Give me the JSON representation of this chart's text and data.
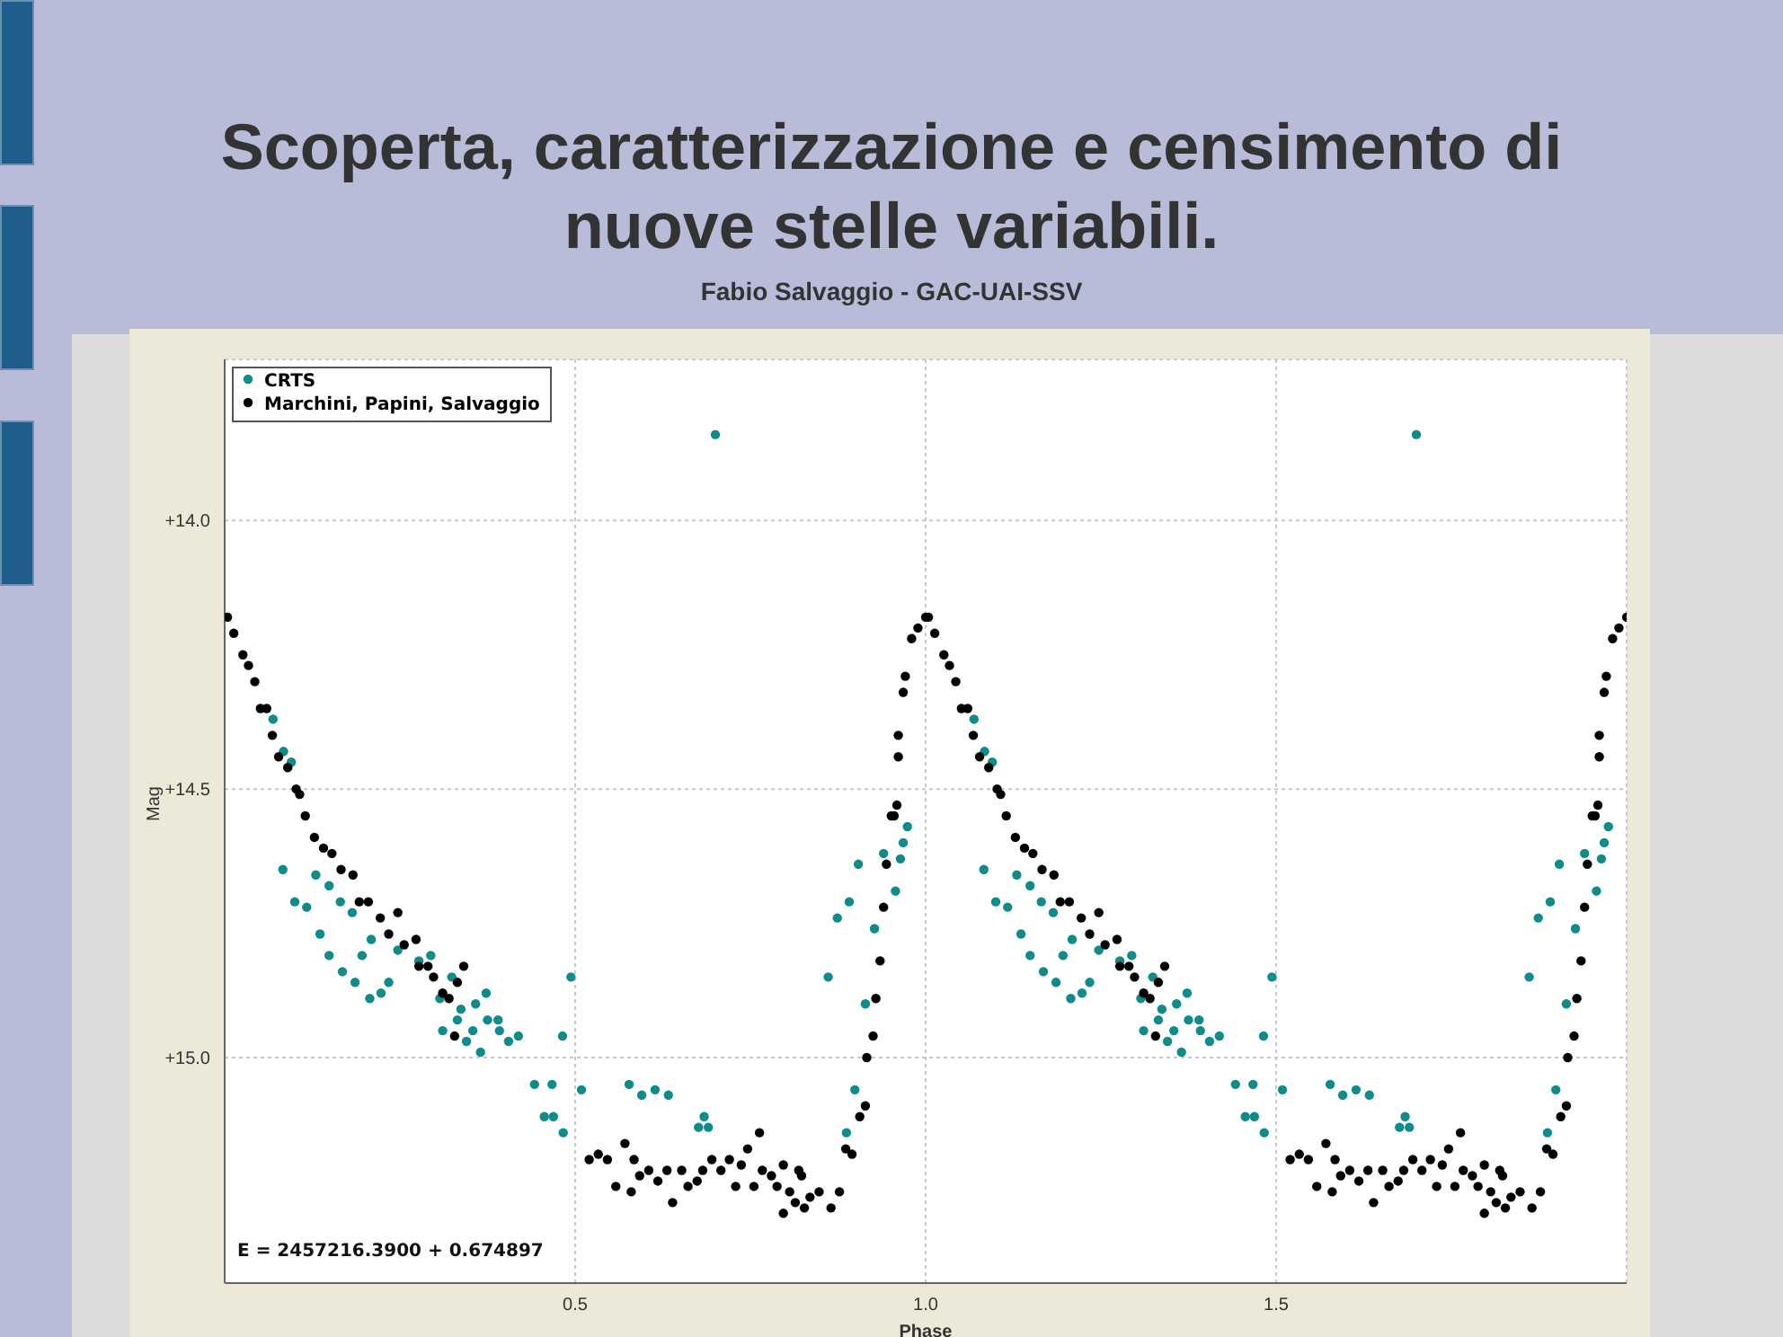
{
  "chart_data": {
    "type": "scatter",
    "title": "Scoperta, caratterizzazione e censimento di nuove stelle variabili.",
    "subtitle": "Fabio Salvaggio - GAC-UAI-SSV",
    "xlabel": "Phase",
    "ylabel": "Mag",
    "xlim": [
      0,
      2
    ],
    "xticks": [
      0.5,
      {
        "value": 1,
        "label": "1.0"
      },
      1.5
    ],
    "ylim": [
      15.42,
      13.7
    ],
    "yticks": [
      {
        "value": 14,
        "label": "+14.0"
      },
      {
        "value": 14.5,
        "label": "+14.5"
      },
      {
        "value": 15,
        "label": "+15.0"
      }
    ],
    "grid": true,
    "legend": "top left",
    "marker": "circle",
    "annotations": [
      "E = 2457216.3900 + 0.674897"
    ],
    "series": [
      {
        "name": "CRTS",
        "color": "#0e8c8c",
        "x": [
          0.069,
          0.084,
          0.095,
          0.083,
          0.1,
          0.117,
          0.13,
          0.136,
          0.149,
          0.149,
          0.165,
          0.168,
          0.182,
          0.186,
          0.196,
          0.207,
          0.209,
          0.223,
          0.234,
          0.247,
          0.277,
          0.294,
          0.307,
          0.311,
          0.324,
          0.332,
          0.337,
          0.345,
          0.354,
          0.358,
          0.365,
          0.373,
          0.375,
          0.39,
          0.392,
          0.405,
          0.419,
          0.442,
          0.456,
          0.467,
          0.469,
          0.482,
          0.483,
          0.494,
          0.509,
          0.577,
          0.595,
          0.614,
          0.633,
          0.676,
          0.684,
          0.69,
          0.7,
          0.861,
          0.874,
          0.887,
          0.891,
          0.899,
          0.904,
          0.914,
          0.927,
          0.94,
          0.957,
          0.964,
          0.968,
          0.974,
          1.069,
          1.084,
          1.095,
          1.083,
          1.1,
          1.117,
          1.13,
          1.136,
          1.149,
          1.149,
          1.165,
          1.168,
          1.182,
          1.186,
          1.196,
          1.207,
          1.209,
          1.223,
          1.234,
          1.247,
          1.277,
          1.294,
          1.307,
          1.311,
          1.324,
          1.332,
          1.337,
          1.345,
          1.354,
          1.358,
          1.365,
          1.373,
          1.375,
          1.39,
          1.392,
          1.405,
          1.419,
          1.442,
          1.456,
          1.467,
          1.469,
          1.482,
          1.483,
          1.494,
          1.509,
          1.577,
          1.595,
          1.614,
          1.633,
          1.676,
          1.684,
          1.69,
          1.7,
          1.861,
          1.874,
          1.887,
          1.891,
          1.899,
          1.904,
          1.914,
          1.927,
          1.94,
          1.957,
          1.964,
          1.968,
          1.974
        ],
        "values": [
          14.37,
          14.43,
          14.45,
          14.65,
          14.71,
          14.72,
          14.66,
          14.77,
          14.68,
          14.81,
          14.71,
          14.84,
          14.73,
          14.86,
          14.81,
          14.89,
          14.78,
          14.88,
          14.86,
          14.8,
          14.82,
          14.81,
          14.89,
          14.95,
          14.85,
          14.93,
          14.91,
          14.97,
          14.95,
          14.9,
          14.99,
          14.88,
          14.93,
          14.93,
          14.95,
          14.97,
          14.96,
          15.05,
          15.11,
          15.05,
          15.11,
          14.96,
          15.14,
          14.85,
          15.06,
          15.05,
          15.07,
          15.06,
          15.07,
          15.13,
          15.11,
          15.13,
          13.84,
          14.85,
          14.74,
          15.14,
          14.71,
          15.06,
          14.64,
          14.9,
          14.76,
          14.62,
          14.69,
          14.63,
          14.6,
          14.57,
          14.37,
          14.43,
          14.45,
          14.65,
          14.71,
          14.72,
          14.66,
          14.77,
          14.68,
          14.81,
          14.71,
          14.84,
          14.73,
          14.86,
          14.81,
          14.89,
          14.78,
          14.88,
          14.86,
          14.8,
          14.82,
          14.81,
          14.89,
          14.95,
          14.85,
          14.93,
          14.91,
          14.97,
          14.95,
          14.9,
          14.99,
          14.88,
          14.93,
          14.93,
          14.95,
          14.97,
          14.96,
          15.05,
          15.11,
          15.05,
          15.11,
          14.96,
          15.14,
          14.85,
          15.06,
          15.05,
          15.07,
          15.06,
          15.07,
          15.13,
          15.11,
          15.13,
          13.84,
          14.85,
          14.74,
          15.14,
          14.71,
          15.06,
          14.64,
          14.9,
          14.76,
          14.62,
          14.69,
          14.63,
          14.6,
          14.57
        ]
      },
      {
        "name": "Marchini, Papini, Salvaggio",
        "color": "#000000",
        "x": [
          0.004,
          0.013,
          0.026,
          0.034,
          0.043,
          0.051,
          0.06,
          0.068,
          0.077,
          0.09,
          0.102,
          0.107,
          0.115,
          0.128,
          0.141,
          0.153,
          0.166,
          0.183,
          0.192,
          0.205,
          0.222,
          0.234,
          0.247,
          0.256,
          0.273,
          0.277,
          0.29,
          0.298,
          0.311,
          0.32,
          0.332,
          0.341,
          0.328,
          0.52,
          0.533,
          0.546,
          0.558,
          0.571,
          0.58,
          0.584,
          0.592,
          0.605,
          0.618,
          0.631,
          0.639,
          0.652,
          0.661,
          0.674,
          0.682,
          0.695,
          0.708,
          0.72,
          0.729,
          0.737,
          0.746,
          0.755,
          0.763,
          0.767,
          0.78,
          0.788,
          0.797,
          0.797,
          0.806,
          0.814,
          0.819,
          0.827,
          0.835,
          0.848,
          0.823,
          0.865,
          0.877,
          0.886,
          0.895,
          0.906,
          0.914,
          0.916,
          0.925,
          0.929,
          0.935,
          0.94,
          0.944,
          0.951,
          0.955,
          0.959,
          0.961,
          0.961,
          0.968,
          0.971,
          0.98,
          0.989,
          1.0,
          1.004,
          1.013,
          1.026,
          1.034,
          1.043,
          1.051,
          1.06,
          1.068,
          1.077,
          1.09,
          1.102,
          1.107,
          1.115,
          1.128,
          1.141,
          1.153,
          1.166,
          1.183,
          1.192,
          1.205,
          1.222,
          1.234,
          1.247,
          1.256,
          1.273,
          1.277,
          1.29,
          1.298,
          1.311,
          1.32,
          1.332,
          1.341,
          1.328,
          1.52,
          1.533,
          1.546,
          1.558,
          1.571,
          1.58,
          1.584,
          1.592,
          1.605,
          1.618,
          1.631,
          1.639,
          1.652,
          1.661,
          1.674,
          1.682,
          1.695,
          1.708,
          1.72,
          1.729,
          1.737,
          1.746,
          1.755,
          1.763,
          1.767,
          1.78,
          1.788,
          1.797,
          1.797,
          1.806,
          1.814,
          1.819,
          1.827,
          1.835,
          1.848,
          1.823,
          1.865,
          1.877,
          1.886,
          1.895,
          1.906,
          1.914,
          1.916,
          1.925,
          1.929,
          1.935,
          1.94,
          1.944,
          1.951,
          1.955,
          1.959,
          1.961,
          1.961,
          1.968,
          1.971,
          1.98,
          1.989,
          2.0
        ],
        "values": [
          14.18,
          14.21,
          14.25,
          14.27,
          14.3,
          14.35,
          14.35,
          14.4,
          14.44,
          14.46,
          14.5,
          14.51,
          14.55,
          14.59,
          14.61,
          14.62,
          14.65,
          14.66,
          14.71,
          14.71,
          14.74,
          14.77,
          14.73,
          14.79,
          14.78,
          14.83,
          14.83,
          14.85,
          14.88,
          14.89,
          14.86,
          14.83,
          14.96,
          15.19,
          15.18,
          15.19,
          15.24,
          15.16,
          15.25,
          15.19,
          15.22,
          15.21,
          15.23,
          15.21,
          15.27,
          15.21,
          15.24,
          15.23,
          15.21,
          15.19,
          15.21,
          15.19,
          15.24,
          15.2,
          15.17,
          15.24,
          15.14,
          15.21,
          15.22,
          15.24,
          15.2,
          15.29,
          15.25,
          15.27,
          15.21,
          15.28,
          15.26,
          15.25,
          15.22,
          15.28,
          15.25,
          15.17,
          15.18,
          15.11,
          15.09,
          15.0,
          14.96,
          14.89,
          14.82,
          14.72,
          14.64,
          14.55,
          14.55,
          14.53,
          14.44,
          14.4,
          14.32,
          14.29,
          14.22,
          14.2,
          14.18,
          14.18,
          14.21,
          14.25,
          14.27,
          14.3,
          14.35,
          14.35,
          14.4,
          14.44,
          14.46,
          14.5,
          14.51,
          14.55,
          14.59,
          14.61,
          14.62,
          14.65,
          14.66,
          14.71,
          14.71,
          14.74,
          14.77,
          14.73,
          14.79,
          14.78,
          14.83,
          14.83,
          14.85,
          14.88,
          14.89,
          14.86,
          14.83,
          14.96,
          15.19,
          15.18,
          15.19,
          15.24,
          15.16,
          15.25,
          15.19,
          15.22,
          15.21,
          15.23,
          15.21,
          15.27,
          15.21,
          15.24,
          15.23,
          15.21,
          15.19,
          15.21,
          15.19,
          15.24,
          15.2,
          15.17,
          15.24,
          15.14,
          15.21,
          15.22,
          15.24,
          15.2,
          15.29,
          15.25,
          15.27,
          15.21,
          15.28,
          15.26,
          15.25,
          15.22,
          15.28,
          15.25,
          15.17,
          15.18,
          15.11,
          15.09,
          15.0,
          14.96,
          14.89,
          14.82,
          14.72,
          14.64,
          14.55,
          14.55,
          14.53,
          14.44,
          14.4,
          14.32,
          14.29,
          14.22,
          14.2,
          14.18
        ]
      }
    ]
  }
}
